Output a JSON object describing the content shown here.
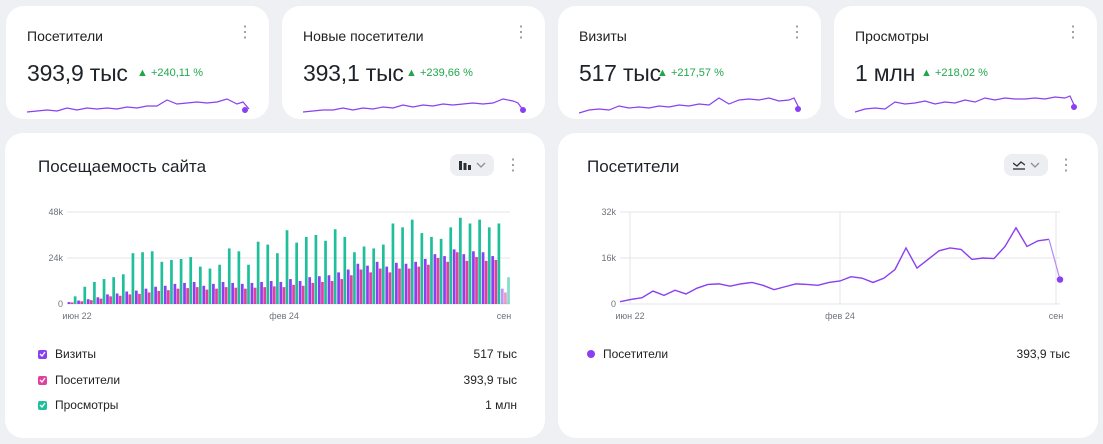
{
  "kpis": [
    {
      "title": "Посетители",
      "value": "393,9 тыс",
      "delta": "▲ +240,11 %"
    },
    {
      "title": "Новые посетители",
      "value": "393,1 тыс",
      "delta": "▲ +239,66 %"
    },
    {
      "title": "Визиты",
      "value": "517 тыс",
      "delta": "▲ +217,57 %"
    },
    {
      "title": "Просмотры",
      "value": "1 млн",
      "delta": "▲ +218,02 %"
    }
  ],
  "attendance": {
    "title": "Посещаемость сайта",
    "legend": [
      {
        "label": "Визиты",
        "value": "517 тыс",
        "color": "#8a3ff0"
      },
      {
        "label": "Посетители",
        "value": "393,9 тыс",
        "color": "#e0409e"
      },
      {
        "label": "Просмотры",
        "value": "1 млн",
        "color": "#1fbf9c"
      }
    ]
  },
  "visitors": {
    "title": "Посетители",
    "legend": [
      {
        "label": "Посетители",
        "value": "393,9 тыс",
        "color": "#8a3ff0"
      }
    ]
  },
  "menu_glyph": "⋮",
  "chart_data": [
    {
      "type": "bar",
      "x_ticks": [
        "июн 22",
        "фев 24",
        "сен"
      ],
      "y_ticks": [
        "0",
        "24k",
        "48k"
      ],
      "ylim": [
        0,
        48000
      ],
      "series": [
        {
          "name": "Визиты",
          "values": [
            1000,
            1800,
            2500,
            3500,
            5000,
            5500,
            6500,
            7000,
            8000,
            9000,
            9500,
            10500,
            11000,
            11500,
            9500,
            10500,
            11500,
            11000,
            10500,
            11000,
            11500,
            12000,
            11500,
            13000,
            12000,
            14000,
            14500,
            15000,
            16500,
            18000,
            21000,
            20000,
            22000,
            19500,
            21500,
            21000,
            22000,
            23500,
            26000,
            25000,
            28500,
            26000,
            27500,
            27000,
            25000,
            8000
          ]
        },
        {
          "name": "Посетители",
          "values": [
            800,
            1400,
            2000,
            2800,
            4000,
            4300,
            5000,
            5300,
            6000,
            6800,
            7200,
            8000,
            8300,
            8800,
            7500,
            8000,
            8800,
            8500,
            8000,
            8500,
            8800,
            9200,
            8800,
            10000,
            9500,
            11000,
            11500,
            12000,
            13000,
            15000,
            18000,
            16500,
            18500,
            16500,
            18500,
            18500,
            19500,
            20500,
            24000,
            22000,
            27000,
            22500,
            24500,
            22500,
            23000,
            6000
          ]
        },
        {
          "name": "Просмотры",
          "values": [
            4000,
            9000,
            11500,
            13000,
            14000,
            15500,
            26500,
            27000,
            27500,
            22000,
            23000,
            23500,
            24500,
            19500,
            18500,
            20500,
            29000,
            27500,
            20500,
            32500,
            31000,
            26500,
            38500,
            32000,
            35000,
            36000,
            33000,
            39000,
            35000,
            27000,
            30000,
            29000,
            31000,
            42000,
            40000,
            44000,
            37000,
            35000,
            34000,
            40000,
            45000,
            42000,
            44000,
            40000,
            42000,
            14000
          ]
        }
      ]
    },
    {
      "type": "line",
      "x_ticks": [
        "июн 22",
        "фев 24",
        "сен"
      ],
      "y_ticks": [
        "0",
        "16k",
        "32k"
      ],
      "ylim": [
        0,
        32000
      ],
      "series": [
        {
          "name": "Посетители",
          "values": [
            800,
            1600,
            2200,
            4500,
            3000,
            4800,
            3500,
            5500,
            6800,
            7000,
            6200,
            7000,
            7500,
            6500,
            5000,
            6000,
            7000,
            6800,
            6500,
            7500,
            8000,
            9500,
            9000,
            7500,
            9000,
            12000,
            19500,
            12500,
            15500,
            18500,
            19500,
            19000,
            15500,
            16000,
            15800,
            20000,
            26500,
            20000,
            22000,
            22500,
            8500
          ]
        }
      ]
    }
  ]
}
